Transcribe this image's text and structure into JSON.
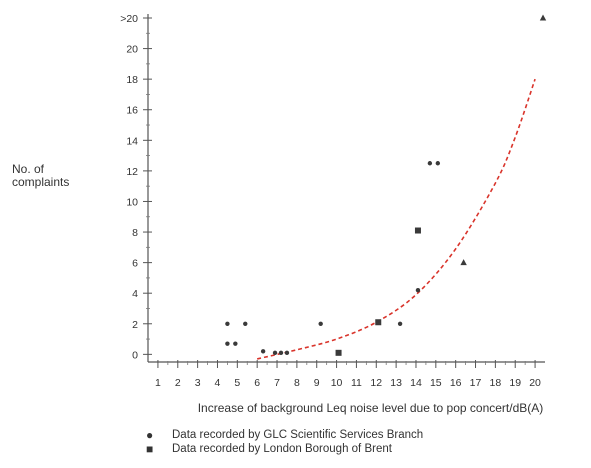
{
  "chart_data": {
    "type": "scatter",
    "ylabel": "No. of\ncomplaints",
    "xlabel": "Increase of background Leq noise level due to pop concert/dB(A)",
    "x_ticks": [
      "1",
      "2",
      "3",
      "4",
      "5",
      "6",
      "7",
      "8",
      "9",
      "10",
      "11",
      "12",
      "13",
      "14",
      "15",
      "16",
      "17",
      "18",
      "19",
      "20"
    ],
    "y_ticks": [
      "0",
      "2",
      "4",
      "6",
      "8",
      "10",
      "12",
      "14",
      "16",
      "18",
      "20",
      ">20"
    ],
    "xlim": [
      0.5,
      20.5
    ],
    "ylim": [
      -0.5,
      22
    ],
    "series": [
      {
        "name": "Data recorded by GLC Scientific Services Branch",
        "marker": "circle",
        "points": [
          {
            "x": 4.5,
            "y": 2
          },
          {
            "x": 4.5,
            "y": 0.7
          },
          {
            "x": 4.9,
            "y": 0.7
          },
          {
            "x": 5.4,
            "y": 2
          },
          {
            "x": 6.3,
            "y": 0.2
          },
          {
            "x": 6.9,
            "y": 0.1
          },
          {
            "x": 7.2,
            "y": 0.1
          },
          {
            "x": 7.5,
            "y": 0.1
          },
          {
            "x": 9.2,
            "y": 2
          },
          {
            "x": 13.2,
            "y": 2
          },
          {
            "x": 14.1,
            "y": 4.2
          },
          {
            "x": 14.7,
            "y": 12.5
          },
          {
            "x": 15.1,
            "y": 12.5
          }
        ]
      },
      {
        "name": "Data recorded by London Borough of Brent",
        "marker": "square",
        "points": [
          {
            "x": 10.1,
            "y": 0.1
          },
          {
            "x": 12.1,
            "y": 2.1
          },
          {
            "x": 14.1,
            "y": 8.1
          }
        ]
      },
      {
        "name": "",
        "marker": "triangle",
        "points": [
          {
            "x": 16.4,
            "y": 6
          },
          {
            "x": 20.4,
            "y": 22
          }
        ]
      }
    ],
    "trend_curve": {
      "color": "#d9342b",
      "points": [
        [
          6,
          -0.3
        ],
        [
          8,
          0.3
        ],
        [
          10,
          1.0
        ],
        [
          12,
          2.1
        ],
        [
          14,
          3.9
        ],
        [
          16,
          6.9
        ],
        [
          18,
          11.2
        ],
        [
          19,
          14.2
        ],
        [
          20,
          18
        ]
      ]
    },
    "legend": [
      {
        "marker": "●",
        "label": "Data recorded by GLC Scientific Services Branch"
      },
      {
        "marker": "■",
        "label": "Data recorded by  London Borough of Brent"
      }
    ]
  }
}
